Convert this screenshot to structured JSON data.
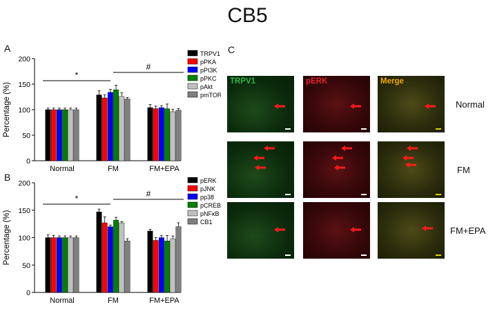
{
  "page": {
    "title": "CB5"
  },
  "panels": {
    "a": "A",
    "b": "B",
    "c": "C"
  },
  "chart_data": [
    {
      "type": "bar",
      "panel": "A",
      "title": "",
      "xlabel": "",
      "ylabel": "Percentage (%)",
      "ylim": [
        0,
        200
      ],
      "yticks": [
        0,
        50,
        100,
        150,
        200
      ],
      "grid": false,
      "legend_position": "right",
      "categories": [
        "Normal",
        "FM",
        "FM+EPA"
      ],
      "series": [
        {
          "name": "TRPV1",
          "color": "#000000",
          "values": [
            100,
            129,
            104
          ],
          "errors": [
            3,
            8,
            6
          ]
        },
        {
          "name": "pPKA",
          "color": "#ff0000",
          "values": [
            100,
            123,
            102
          ],
          "errors": [
            3,
            6,
            5
          ]
        },
        {
          "name": "pPI3K",
          "color": "#0000ff",
          "values": [
            100,
            134,
            104
          ],
          "errors": [
            3,
            6,
            4
          ]
        },
        {
          "name": "pPKC",
          "color": "#008000",
          "values": [
            100,
            139,
            102
          ],
          "errors": [
            3,
            9,
            9
          ]
        },
        {
          "name": "pAkt",
          "color": "#c0c0c0",
          "values": [
            100,
            126,
            96
          ],
          "errors": [
            3,
            7,
            5
          ]
        },
        {
          "name": "pmTOR",
          "color": "#808080",
          "values": [
            100,
            121,
            99
          ],
          "errors": [
            3,
            3,
            3
          ]
        }
      ],
      "annotations": [
        {
          "text": "*",
          "from": "Normal",
          "to": "FM"
        },
        {
          "text": "#",
          "from": "FM",
          "to": "FM+EPA"
        }
      ]
    },
    {
      "type": "bar",
      "panel": "B",
      "title": "",
      "xlabel": "",
      "ylabel": "Percentage (%)",
      "ylim": [
        0,
        200
      ],
      "yticks": [
        0,
        50,
        100,
        150,
        200
      ],
      "grid": false,
      "legend_position": "right",
      "categories": [
        "Normal",
        "FM",
        "FM+EPA"
      ],
      "series": [
        {
          "name": "pERK",
          "color": "#000000",
          "values": [
            100,
            147,
            112
          ],
          "errors": [
            5,
            5,
            3
          ]
        },
        {
          "name": "pJNK",
          "color": "#ff0000",
          "values": [
            100,
            127,
            95
          ],
          "errors": [
            4,
            11,
            5
          ]
        },
        {
          "name": "pp38",
          "color": "#0000ff",
          "values": [
            100,
            120,
            100
          ],
          "errors": [
            3,
            3,
            4
          ]
        },
        {
          "name": "pCREB",
          "color": "#008000",
          "values": [
            100,
            132,
            94
          ],
          "errors": [
            3,
            5,
            10
          ]
        },
        {
          "name": "pNFκB",
          "color": "#c0c0c0",
          "values": [
            100,
            127,
            98
          ],
          "errors": [
            3,
            2,
            5
          ]
        },
        {
          "name": "CB1",
          "color": "#808080",
          "values": [
            100,
            94,
            120
          ],
          "errors": [
            3,
            4,
            7
          ]
        }
      ],
      "annotations": [
        {
          "text": "*",
          "from": "Normal",
          "to": "FM"
        },
        {
          "text": "#",
          "from": "FM",
          "to": "FM+EPA"
        }
      ]
    }
  ],
  "micrographs": {
    "columns": [
      {
        "label": "TRPV1",
        "color": "#2fb84b"
      },
      {
        "label": "pERK",
        "color": "#e0242c"
      },
      {
        "label": "Merge",
        "color": "#f2a900"
      }
    ],
    "rows": [
      {
        "label": "Normal",
        "arrows": 1
      },
      {
        "label": "FM",
        "arrows": 3
      },
      {
        "label": "FM+EPA",
        "arrows": 1
      }
    ],
    "arrow_color": "#ff1a1a"
  }
}
